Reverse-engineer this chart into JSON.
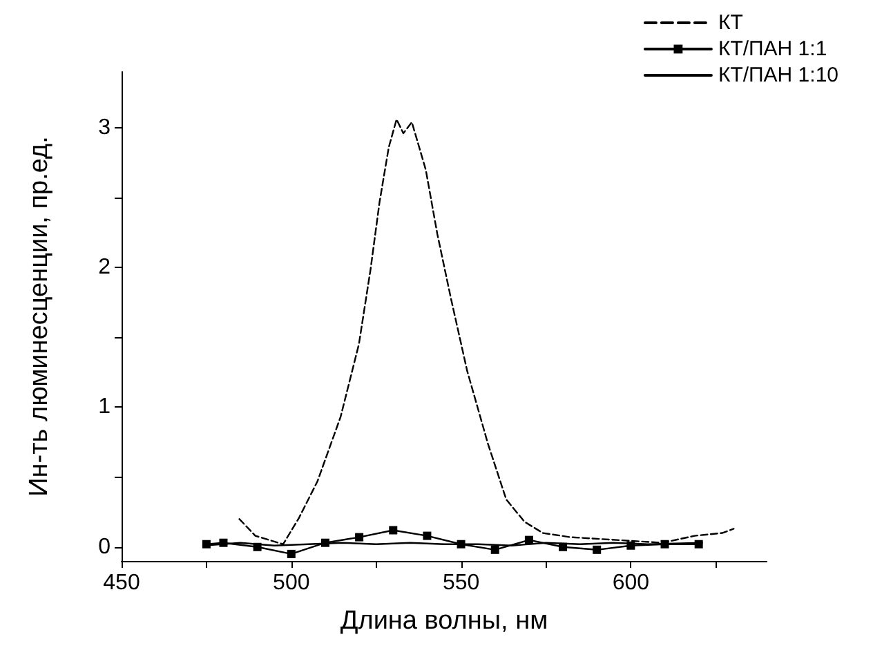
{
  "chart_data": {
    "type": "line",
    "xlabel": "Длина волны, нм",
    "ylabel": "Ин-ть люминесценции, пр.ед.",
    "xlim": [
      450,
      640
    ],
    "xticks": [
      450,
      {
        "value": 475,
        "label": null
      },
      500,
      {
        "value": 525,
        "label": null
      },
      550,
      {
        "value": 575,
        "label": null
      },
      600,
      {
        "value": 625,
        "label": null
      }
    ],
    "ylim": [
      -0.1,
      3.4
    ],
    "yticks": [
      0,
      {
        "value": 0.5,
        "label": null
      },
      1,
      {
        "value": 1.5,
        "label": null
      },
      2,
      {
        "value": 2.5,
        "label": null
      },
      3
    ],
    "grid": false,
    "legend": "top right",
    "series": [
      {
        "name": "КТ",
        "color": "#000000",
        "line_style": "dashed",
        "marker": "none",
        "x": [
          484.7,
          489.4,
          497.6,
          502.3,
          507.7,
          514.5,
          519.9,
          523.3,
          526,
          528.7,
          531,
          533,
          535.5,
          539.6,
          543,
          547,
          551.8,
          557.9,
          563.3,
          568.7,
          574.1,
          582.2,
          595.8,
          609.3,
          618.8,
          626.9,
          630.3
        ],
        "values": [
          0.2,
          0.08,
          0.02,
          0.21,
          0.47,
          0.93,
          1.45,
          1.98,
          2.47,
          2.86,
          3.06,
          2.96,
          3.04,
          2.7,
          2.24,
          1.78,
          1.26,
          0.74,
          0.34,
          0.18,
          0.1,
          0.07,
          0.05,
          0.03,
          0.08,
          0.1,
          0.13
        ]
      },
      {
        "name": "КТ/ПАН 1:1",
        "color": "#000000",
        "line_style": "solid",
        "marker": "square",
        "x": [
          475,
          480,
          490,
          500,
          510,
          520,
          530,
          540,
          550,
          560,
          570,
          580,
          590,
          600,
          610,
          620
        ],
        "values": [
          0.02,
          0.03,
          0.0,
          -0.05,
          0.03,
          0.07,
          0.12,
          0.08,
          0.02,
          -0.02,
          0.05,
          0.0,
          -0.02,
          0.01,
          0.02,
          0.02
        ]
      },
      {
        "name": "КТ/ПАН 1:10",
        "color": "#000000",
        "line_style": "solid",
        "marker": "none",
        "x": [
          474,
          485,
          495,
          505,
          515,
          525,
          535,
          545,
          555,
          565,
          575,
          585,
          595,
          605,
          621
        ],
        "values": [
          0.01,
          0.03,
          0.01,
          0.02,
          0.03,
          0.02,
          0.03,
          0.02,
          0.02,
          0.01,
          0.03,
          0.02,
          0.03,
          0.02,
          0.03
        ]
      }
    ]
  }
}
